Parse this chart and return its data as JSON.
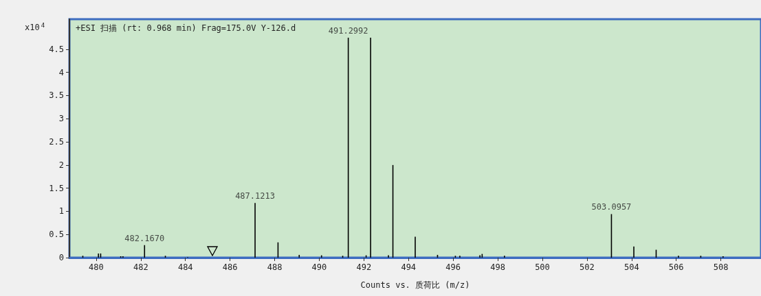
{
  "chart_data": {
    "type": "bar",
    "title": "+ESI 扫描 (rt: 0.968 min) Frag=175.0V Y-126.d",
    "xlabel": "Counts vs. 质荷比 (m/z)",
    "ylabel": "x10$^{4}$",
    "x": [
      479.4,
      480.1,
      480.2,
      481.1,
      481.2,
      482.167,
      483.1,
      484.1,
      487.1213,
      488.15,
      489.1,
      490.1,
      491.05,
      491.2992,
      492.1,
      492.3,
      493.1,
      493.3,
      494.3,
      495.3,
      496.1,
      496.3,
      497.2,
      497.3,
      498.3,
      503.0957,
      504.1,
      505.1,
      506.1,
      507.1,
      508.1
    ],
    "series": [
      {
        "color": "#000000",
        "values": [
          0.04,
          0.09,
          0.09,
          0.03,
          0.03,
          0.27,
          0.04,
          0.01,
          1.18,
          0.33,
          0.06,
          0.05,
          0.04,
          4.75,
          0.05,
          4.75,
          0.05,
          2.0,
          0.45,
          0.06,
          0.04,
          0.04,
          0.05,
          0.08,
          0.04,
          0.94,
          0.24,
          0.17,
          0.04,
          0.04,
          0.03
        ]
      }
    ],
    "xlim": [
      478.8,
      509.8
    ],
    "xticks": [
      480,
      482,
      484,
      486,
      488,
      490,
      492,
      494,
      496,
      498,
      500,
      502,
      504,
      506,
      508
    ],
    "ylim": [
      0,
      5.15
    ],
    "yticks": [
      0,
      0.5,
      1,
      1.5,
      2,
      2.5,
      3,
      3.5,
      4,
      4.5
    ],
    "annotations": [
      {
        "text": "482.1670",
        "x": 482.167,
        "y": 0.27
      },
      {
        "text": "487.1213",
        "x": 487.1213,
        "y": 1.18
      },
      {
        "text": "491.2992",
        "x": 491.2992,
        "y": 4.75
      },
      {
        "text": "503.0957",
        "x": 503.0957,
        "y": 0.94
      }
    ],
    "grid": false
  }
}
